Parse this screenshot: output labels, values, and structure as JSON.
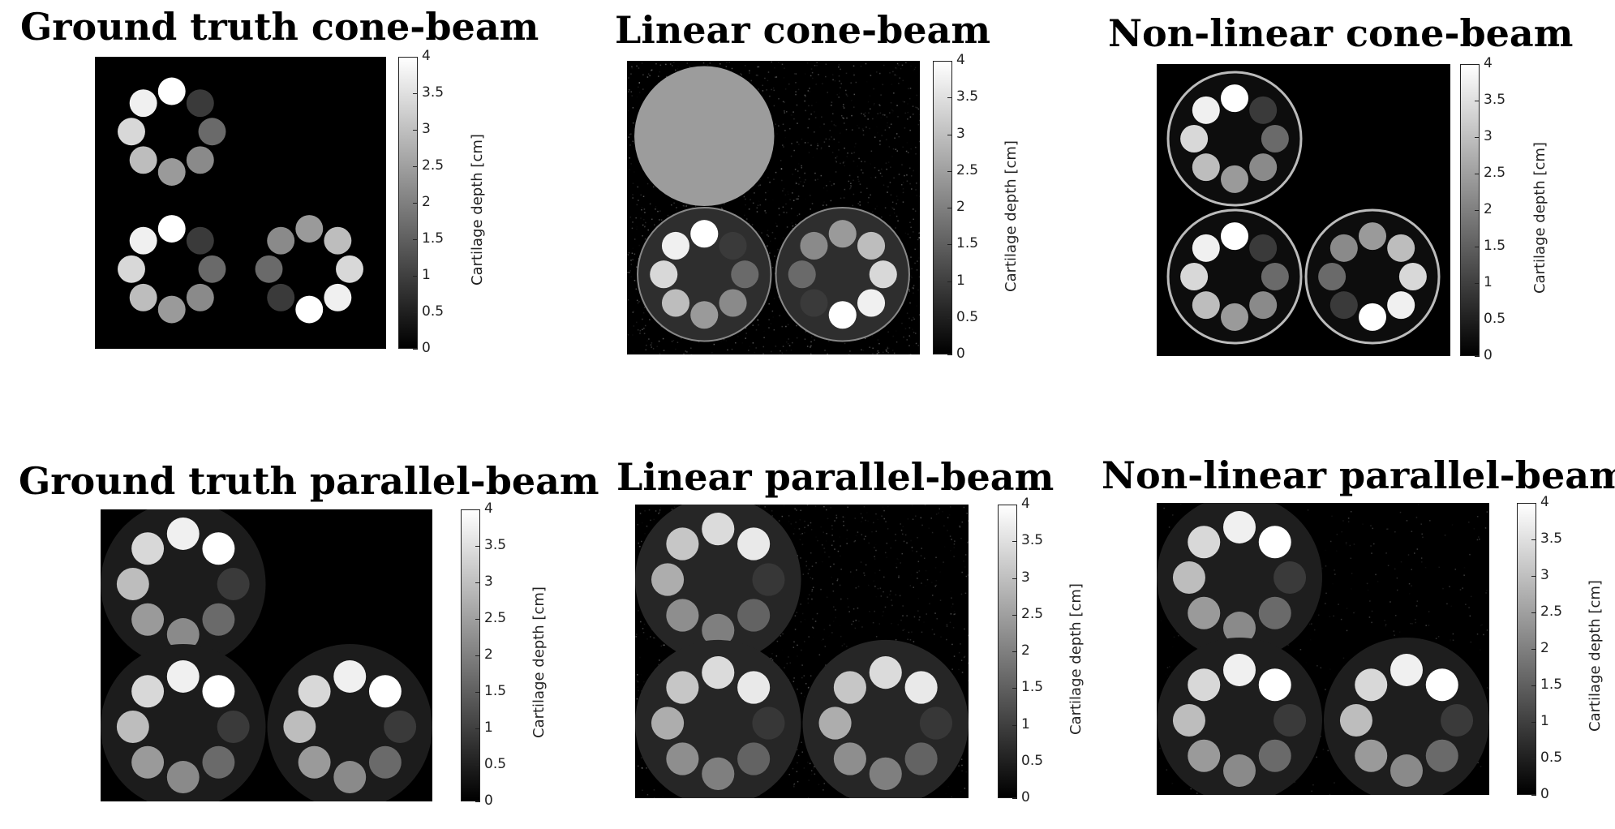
{
  "colorbar": {
    "label": "Cartilage depth [cm]",
    "ticks": [
      "0",
      "0.5",
      "1",
      "1.5",
      "2",
      "2.5",
      "3",
      "3.5",
      "4"
    ],
    "range": [
      0,
      4
    ],
    "colormap": "gray"
  },
  "panels": [
    {
      "id": "gt-cone",
      "title": "Ground truth cone-beam",
      "geometry": "cone",
      "kind": "ground-truth"
    },
    {
      "id": "lin-cone",
      "title": "Linear cone-beam",
      "geometry": "cone",
      "kind": "linear"
    },
    {
      "id": "nl-cone",
      "title": "Non-linear cone-beam",
      "geometry": "cone",
      "kind": "non-linear"
    },
    {
      "id": "gt-par",
      "title": "Ground truth parallel-beam",
      "geometry": "parallel",
      "kind": "ground-truth"
    },
    {
      "id": "lin-par",
      "title": "Linear parallel-beam",
      "geometry": "parallel",
      "kind": "linear"
    },
    {
      "id": "nl-par",
      "title": "Non-linear parallel-beam",
      "geometry": "parallel",
      "kind": "non-linear"
    }
  ]
}
